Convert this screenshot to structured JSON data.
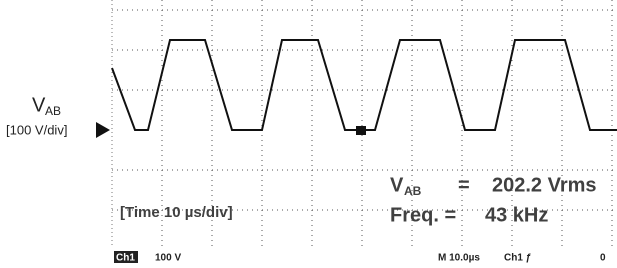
{
  "channel_label": {
    "symbol": "V",
    "subscript": "AB",
    "scale": "[100 V/div]"
  },
  "readings": {
    "voltage": {
      "symbol": "V",
      "subscript": "AB",
      "equals": "=",
      "value": "202.2 Vrms"
    },
    "frequency": {
      "label": "Freq. =",
      "value": "43 kHz"
    }
  },
  "time_scale": "[Time 10 µs/div]",
  "status_bar": [
    "Ch1",
    "100 V",
    "M 10.0µs",
    "Ch1 ƒ",
    "0"
  ]
}
